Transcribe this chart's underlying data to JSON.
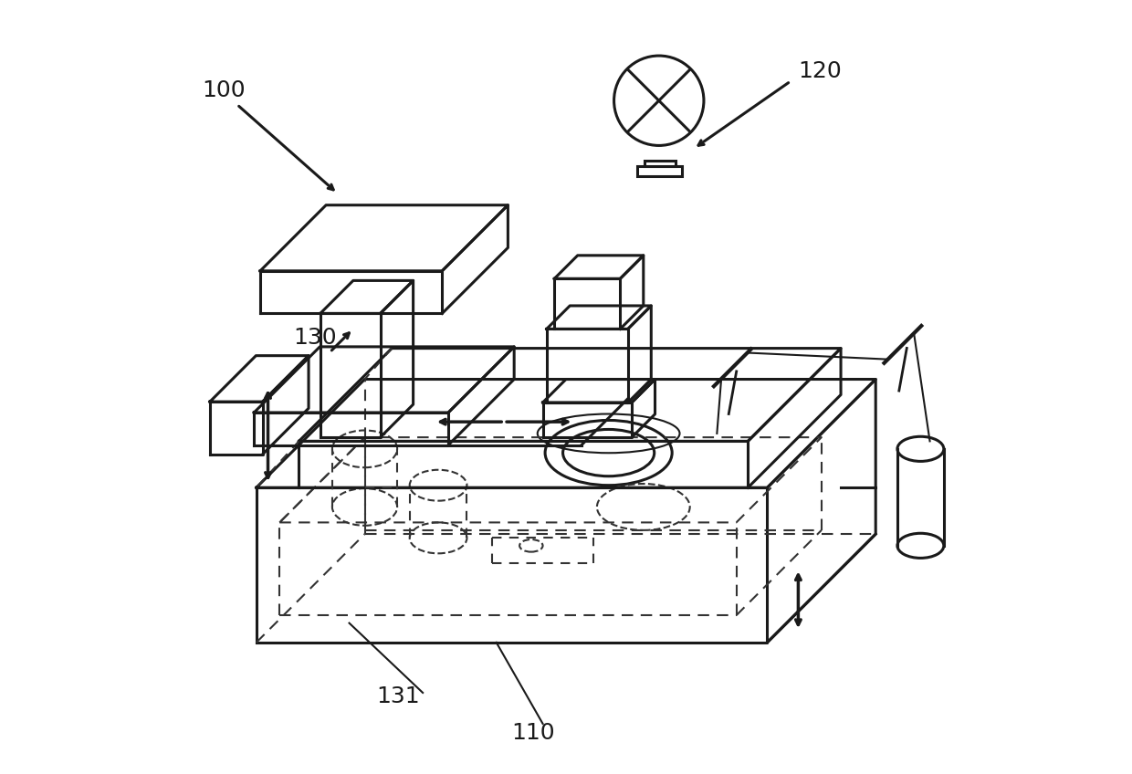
{
  "bg_color": "#ffffff",
  "line_color": "#1a1a1a",
  "dashed_color": "#333333",
  "label_fontsize": 18
}
